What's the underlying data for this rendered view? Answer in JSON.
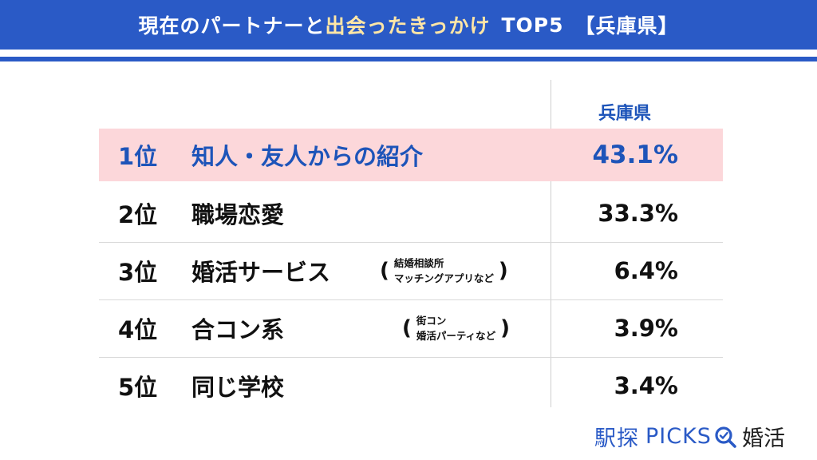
{
  "header": {
    "title_part1": "現在のパートナーと",
    "title_highlight": "出会ったきっかけ",
    "title_top": "TOP5",
    "title_region": "【兵庫県】"
  },
  "column_header": "兵庫県",
  "chart_data": {
    "type": "table",
    "title": "現在のパートナーと出会ったきっかけ TOP5 【兵庫県】",
    "column": "兵庫県",
    "rows": [
      {
        "rank": "1位",
        "label": "知人・友人からの紹介",
        "note": [],
        "value": "43.1%"
      },
      {
        "rank": "2位",
        "label": "職場恋愛",
        "note": [],
        "value": "33.3%"
      },
      {
        "rank": "3位",
        "label": "婚活サービス",
        "note": [
          "結婚相談所",
          "マッチングアプリなど"
        ],
        "value": "6.4%"
      },
      {
        "rank": "4位",
        "label": "合コン系",
        "note": [
          "街コン",
          "婚活パーティなど"
        ],
        "value": "3.9%"
      },
      {
        "rank": "5位",
        "label": "同じ学校",
        "note": [],
        "value": "3.4%"
      }
    ],
    "highlight_color": "#fcd7da",
    "accent_color": "#1d54b9"
  },
  "logo": {
    "brand_jp": "駅探",
    "brand_en": "PICKS",
    "brand_suffix": "婚活"
  }
}
